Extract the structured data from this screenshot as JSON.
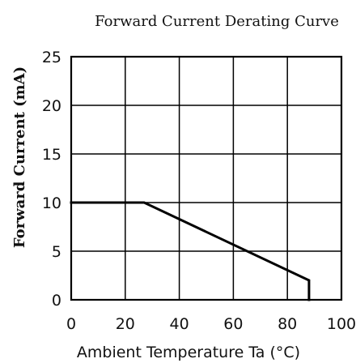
{
  "chart_data": {
    "type": "line",
    "title": "Forward Current Derating Curve",
    "xlabel": "Ambient Temperature Ta (°C)",
    "ylabel": "Forward Current (mA)",
    "xlim": [
      0,
      100
    ],
    "ylim": [
      0,
      25
    ],
    "x_ticks": [
      0,
      20,
      40,
      60,
      80,
      100
    ],
    "y_ticks": [
      0,
      5,
      10,
      15,
      20,
      25
    ],
    "x_tick_labels": [
      "0",
      "20",
      "40",
      "60",
      "80",
      "100"
    ],
    "y_tick_labels": [
      "0",
      "5",
      "10",
      "15",
      "20",
      "25"
    ],
    "grid": true,
    "series": [
      {
        "x": [
          0,
          27,
          88,
          88
        ],
        "y": [
          10,
          10,
          2,
          0
        ],
        "color": "#000000"
      }
    ]
  }
}
